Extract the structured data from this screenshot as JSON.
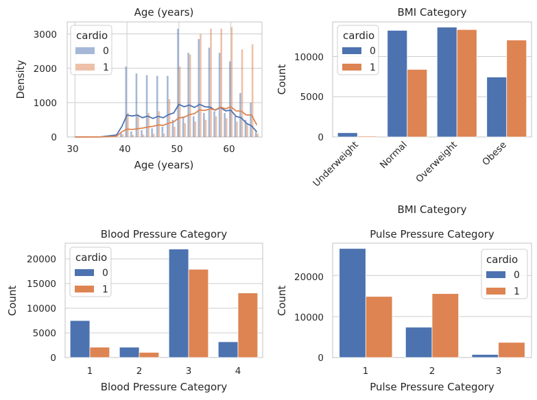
{
  "colors": {
    "c0": "#4c72b0",
    "c1": "#dd8452",
    "grid": "#cccccc",
    "frame": "#cccccc"
  },
  "chart_data": [
    {
      "type": "area",
      "title": "Age (years)",
      "xlabel": "Age (years)",
      "ylabel": "Density",
      "xlim": [
        28.5,
        66
      ],
      "ylim": [
        0,
        3350
      ],
      "xticks": [
        "30",
        "40",
        "50",
        "60"
      ],
      "yticks": [
        "0",
        "1000",
        "2000",
        "3000"
      ],
      "legend": {
        "title": "cardio",
        "entries": [
          "0",
          "1"
        ],
        "position": "upper left"
      },
      "histogram": {
        "x": [
          30,
          39,
          40,
          41,
          42,
          43,
          44,
          45,
          46,
          47,
          48,
          49,
          50,
          51,
          52,
          53,
          54,
          55,
          56,
          57,
          58,
          59,
          60,
          61,
          62,
          63,
          64,
          65
        ],
        "series": [
          {
            "name": "0",
            "values": [
              5,
              120,
              2050,
              160,
              1850,
              200,
              1800,
              250,
              1780,
              300,
              1780,
              500,
              3150,
              600,
              2450,
              600,
              2850,
              700,
              2600,
              750,
              2450,
              700,
              2200,
              600,
              1280,
              500,
              1000,
              150
            ]
          },
          {
            "name": "1",
            "values": [
              2,
              80,
              700,
              60,
              650,
              70,
              700,
              90,
              750,
              100,
              1100,
              300,
              2050,
              400,
              2400,
              450,
              3000,
              500,
              3150,
              600,
              3150,
              550,
              3200,
              450,
              2550,
              400,
              2700,
              100
            ]
          }
        ]
      },
      "kde": {
        "x": [
          30,
          35,
          38,
          39,
          40,
          41,
          42,
          43,
          44,
          45,
          46,
          47,
          48,
          49,
          50,
          51,
          52,
          53,
          54,
          55,
          56,
          57,
          58,
          59,
          60,
          61,
          62,
          63,
          64,
          65
        ],
        "series": [
          {
            "name": "0",
            "values": [
              0,
              5,
              60,
              300,
              640,
              610,
              640,
              560,
              610,
              540,
              600,
              560,
              650,
              700,
              950,
              880,
              930,
              860,
              950,
              880,
              870,
              780,
              860,
              760,
              780,
              600,
              560,
              400,
              320,
              150
            ]
          },
          {
            "name": "1",
            "values": [
              0,
              2,
              20,
              150,
              230,
              220,
              240,
              260,
              290,
              310,
              350,
              340,
              400,
              440,
              560,
              570,
              650,
              680,
              790,
              770,
              820,
              790,
              870,
              820,
              880,
              760,
              750,
              640,
              640,
              350
            ]
          }
        ]
      }
    },
    {
      "type": "bar",
      "title": "BMI Category",
      "xlabel": "BMI Category",
      "ylabel": "Count",
      "categories": [
        "Underweight",
        "Normal",
        "Overweight",
        "Obese"
      ],
      "series": [
        {
          "name": "0",
          "values": [
            530,
            13250,
            13650,
            7450
          ]
        },
        {
          "name": "1",
          "values": [
            120,
            8400,
            13350,
            12050
          ]
        }
      ],
      "ylim": [
        0,
        14300
      ],
      "yticks": [
        "0",
        "5000",
        "10000"
      ],
      "legend": {
        "title": "cardio",
        "entries": [
          "0",
          "1"
        ],
        "position": "upper left"
      }
    },
    {
      "type": "bar",
      "title": "Blood Pressure Category",
      "xlabel": "Blood Pressure Category",
      "ylabel": "Count",
      "categories": [
        "1",
        "2",
        "3",
        "4"
      ],
      "series": [
        {
          "name": "0",
          "values": [
            7500,
            2100,
            22000,
            3200
          ]
        },
        {
          "name": "1",
          "values": [
            2100,
            1050,
            17900,
            13100
          ]
        }
      ],
      "ylim": [
        0,
        23200
      ],
      "yticks": [
        "0",
        "5000",
        "10000",
        "15000",
        "20000"
      ],
      "legend": {
        "title": "cardio",
        "entries": [
          "0",
          "1"
        ],
        "position": "upper left"
      }
    },
    {
      "type": "bar",
      "title": "Pulse Pressure Category",
      "xlabel": "Pulse Pressure Category",
      "ylabel": "Count",
      "categories": [
        "1",
        "2",
        "3"
      ],
      "series": [
        {
          "name": "0",
          "values": [
            26600,
            7400,
            750
          ]
        },
        {
          "name": "1",
          "values": [
            14900,
            15600,
            3700
          ]
        }
      ],
      "ylim": [
        0,
        27900
      ],
      "yticks": [
        "0",
        "10000",
        "20000"
      ],
      "legend": {
        "title": "cardio",
        "entries": [
          "0",
          "1"
        ],
        "position": "upper right"
      }
    }
  ]
}
